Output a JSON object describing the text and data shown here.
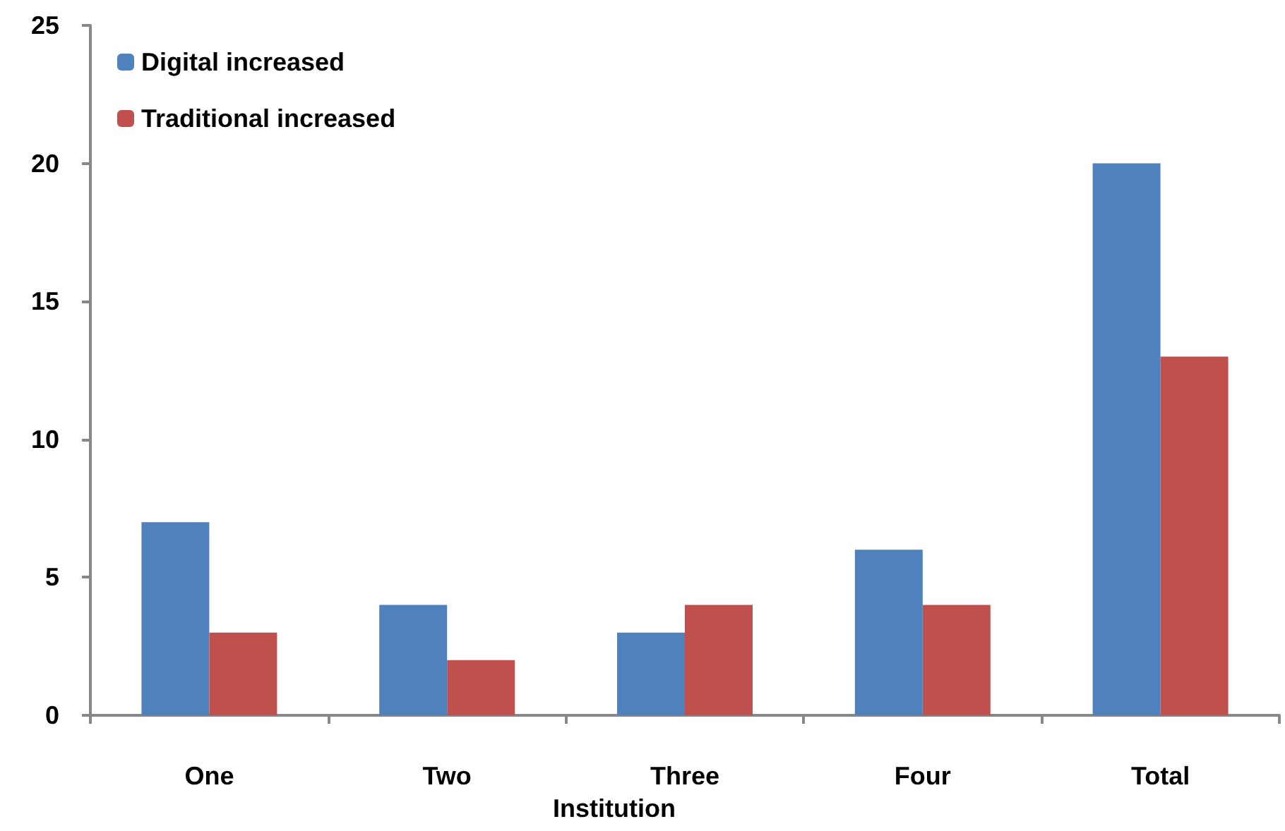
{
  "chart_data": {
    "type": "bar",
    "xlabel": "Institution",
    "categories": [
      "One",
      "Two",
      "Three",
      "Four",
      "Total"
    ],
    "series": [
      {
        "name": "Digital increased",
        "color": "#4f81bd",
        "values": [
          7,
          4,
          3,
          6,
          20
        ]
      },
      {
        "name": "Traditional increased",
        "color": "#c0504d",
        "values": [
          3,
          2,
          4,
          4,
          13
        ]
      }
    ],
    "ylim": [
      0,
      25
    ],
    "yticks": [
      0,
      5,
      10,
      15,
      20,
      25
    ],
    "grid": false,
    "legend": "top left"
  }
}
